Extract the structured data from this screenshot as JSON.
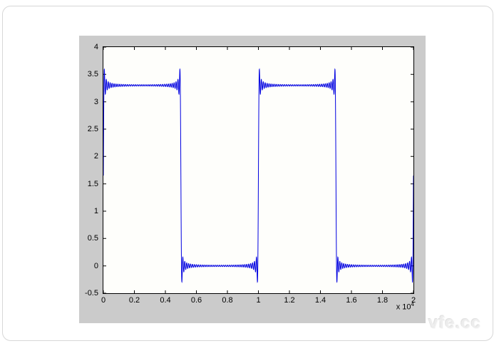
{
  "page": {
    "watermark": "vfe.cc"
  },
  "figure": {
    "background_color": "#cbcbcb",
    "plot_background_color": "#fefefb",
    "axes_border_color": "#000000"
  },
  "chart_data": {
    "type": "line",
    "title": "",
    "xlabel": "",
    "ylabel": "",
    "grid": false,
    "legend": null,
    "xlim": [
      0,
      20000
    ],
    "ylim": [
      -0.5,
      4
    ],
    "x_ticks": [
      0,
      2000,
      4000,
      6000,
      8000,
      10000,
      12000,
      14000,
      16000,
      18000,
      20000
    ],
    "x_tick_labels": [
      "0",
      "0.2",
      "0.4",
      "0.6",
      "0.8",
      "1",
      "1.2",
      "1.4",
      "1.6",
      "1.8",
      "2"
    ],
    "x_exp_prefix": "x 10",
    "x_exp_value": "4",
    "y_ticks": [
      4,
      3.5,
      3,
      2.5,
      2,
      1.5,
      1,
      0.5,
      0,
      -0.5
    ],
    "y_tick_labels": [
      "4",
      "3.5",
      "3",
      "2.5",
      "2",
      "1.5",
      "1",
      "0.5",
      "0",
      "-0.5"
    ],
    "line_color": "#0000e0",
    "line_width": 1,
    "tick_length": 4,
    "waveform": {
      "shape": "square_wave_fourier_partial_sum",
      "period": 10000,
      "high_level": 3.3,
      "low_level": 0,
      "starts": "high",
      "transitions_x": [
        5000,
        10000,
        15000,
        20000
      ],
      "segment_levels": [
        {
          "x_from": 0,
          "x_to": 5000,
          "level": 3.3
        },
        {
          "x_from": 5000,
          "x_to": 10000,
          "level": 0
        },
        {
          "x_from": 10000,
          "x_to": 15000,
          "level": 3.3
        },
        {
          "x_from": 15000,
          "x_to": 20000,
          "level": 0
        }
      ],
      "gibbs_overshoot_peak": 3.6,
      "gibbs_undershoot_peak": -0.3,
      "edge_start_value": 1.65,
      "harmonics": 79,
      "samples": 5000
    }
  }
}
